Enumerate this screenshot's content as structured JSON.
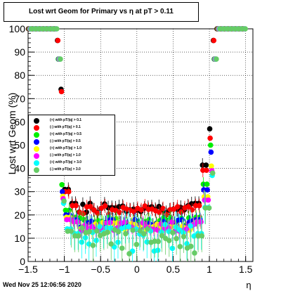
{
  "chart_data": {
    "type": "scatter",
    "title": "Lost wrt Geom for Primary vs  η at pT > 0.11",
    "xlabel": "η",
    "ylabel": "Lost wrt Geom (%)",
    "xlim": [
      -1.5,
      1.6
    ],
    "ylim": [
      0,
      100
    ],
    "x_ticks": [
      "−1.5",
      "−1",
      "−0.5",
      "0",
      "0.5",
      "1",
      "1.5"
    ],
    "y_ticks": [
      "0",
      "10",
      "20",
      "30",
      "40",
      "50",
      "60",
      "70",
      "80",
      "90",
      "100"
    ],
    "grid": true,
    "legend_position": "left-middle",
    "series": [
      {
        "name": "(+) with pT/|q| > 0.1",
        "color": "#000000",
        "profile": {
          "inner": 23,
          "spike": 74,
          "ramp": 31,
          "edge": 57
        }
      },
      {
        "name": "(-) with pT/|q| > 0.1",
        "color": "#ff0000",
        "profile": {
          "inner": 22,
          "spike": 73,
          "ramp": 30,
          "edge": 53
        }
      },
      {
        "name": "(+) with pT/|q| > 0.5",
        "color": "#00ee00",
        "profile": {
          "inner": 17,
          "spike": 33,
          "ramp": 22,
          "edge": 50
        }
      },
      {
        "name": "(-) with pT/|q| > 0.5",
        "color": "#0000ff",
        "profile": {
          "inner": 16,
          "spike": 30,
          "ramp": 20,
          "edge": 47
        }
      },
      {
        "name": "(+) with pT/|q| > 1.0",
        "color": "#ffff00",
        "profile": {
          "inner": 15,
          "spike": 28,
          "ramp": 19,
          "edge": 41
        }
      },
      {
        "name": "(-) with pT/|q| > 1.0",
        "color": "#ff00ff",
        "profile": {
          "inner": 15,
          "spike": 27,
          "ramp": 18,
          "edge": 39
        }
      },
      {
        "name": "(+) with pT/|q| > 3.0",
        "color": "#00ffff",
        "profile": {
          "inner": 10,
          "spike": 25,
          "ramp": 14,
          "edge": 37
        }
      },
      {
        "name": "(-) with pT/|q| > 3.0",
        "color": "#66cc66",
        "profile": {
          "inner": 9,
          "spike": 26,
          "ramp": 13,
          "edge": 38
        }
      }
    ]
  },
  "timestamp": "Wed Nov 25 12:06:56 2020"
}
